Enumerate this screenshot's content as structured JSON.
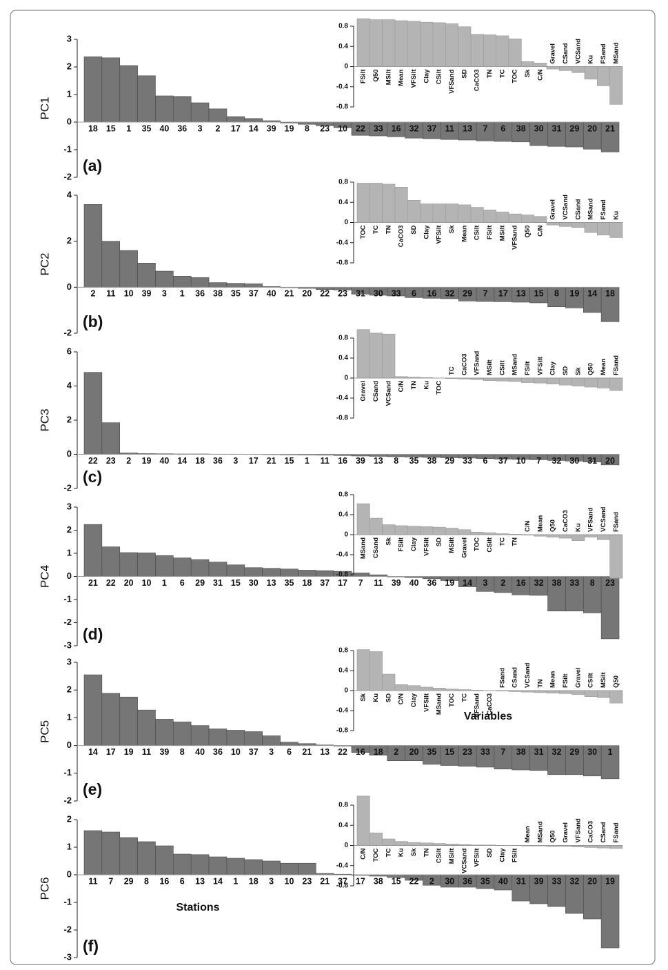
{
  "chart_data": [
    {
      "type": "bar",
      "ylabel": "PC1",
      "panel_label": "(a)",
      "color": "#767676",
      "ylim": [
        -2,
        3
      ],
      "yticks": [
        -2,
        -1,
        0,
        1,
        2,
        3
      ],
      "categories": [
        "18",
        "15",
        "1",
        "35",
        "40",
        "36",
        "3",
        "2",
        "17",
        "14",
        "39",
        "19",
        "8",
        "23",
        "10",
        "22",
        "33",
        "16",
        "32",
        "37",
        "11",
        "13",
        "7",
        "6",
        "38",
        "30",
        "31",
        "29",
        "20",
        "21"
      ],
      "values": [
        2.37,
        2.33,
        2.05,
        1.68,
        0.95,
        0.93,
        0.7,
        0.48,
        0.2,
        0.13,
        0.05,
        -0.03,
        -0.08,
        -0.13,
        -0.2,
        -0.48,
        -0.5,
        -0.53,
        -0.58,
        -0.6,
        -0.63,
        -0.65,
        -0.68,
        -0.7,
        -0.72,
        -0.85,
        -0.88,
        -0.9,
        -0.98,
        -1.08
      ]
    },
    {
      "type": "bar",
      "color": "#b4b4b4",
      "ylim": [
        -0.8,
        0.8
      ],
      "yticks": [
        -0.8,
        -0.4,
        0,
        0.4,
        0.8
      ],
      "categories": [
        "FSilt",
        "Q50",
        "MSilt",
        "Mean",
        "VFSilt",
        "Clay",
        "CSilt",
        "VFSand",
        "SD",
        "CaCO3",
        "TN",
        "TC",
        "TOC",
        "Sk",
        "C/N",
        "Gravel",
        "CSand",
        "VCSand",
        "Ku",
        "FSand",
        "MSand"
      ],
      "values": [
        0.95,
        0.93,
        0.93,
        0.91,
        0.9,
        0.88,
        0.87,
        0.85,
        0.79,
        0.64,
        0.63,
        0.61,
        0.55,
        0.1,
        0.07,
        -0.05,
        -0.08,
        -0.12,
        -0.25,
        -0.38,
        -0.75
      ]
    },
    {
      "type": "bar",
      "ylabel": "PC2",
      "panel_label": "(b)",
      "color": "#767676",
      "ylim": [
        -2,
        4
      ],
      "yticks": [
        -2,
        0,
        2,
        4
      ],
      "categories": [
        "2",
        "11",
        "10",
        "39",
        "3",
        "1",
        "36",
        "38",
        "35",
        "37",
        "40",
        "21",
        "20",
        "22",
        "23",
        "31",
        "30",
        "33",
        "6",
        "16",
        "32",
        "29",
        "7",
        "17",
        "13",
        "15",
        "8",
        "19",
        "14",
        "18"
      ],
      "values": [
        3.6,
        2.0,
        1.6,
        1.05,
        0.7,
        0.48,
        0.42,
        0.2,
        0.17,
        0.15,
        0.03,
        -0.02,
        -0.05,
        -0.1,
        -0.12,
        -0.3,
        -0.35,
        -0.38,
        -0.45,
        -0.48,
        -0.5,
        -0.6,
        -0.62,
        -0.63,
        -0.65,
        -0.68,
        -0.85,
        -0.9,
        -1.1,
        -1.5
      ]
    },
    {
      "type": "bar",
      "color": "#b4b4b4",
      "ylim": [
        -0.8,
        0.8
      ],
      "yticks": [
        -0.8,
        -0.4,
        0,
        0.4,
        0.8
      ],
      "categories": [
        "TOC",
        "TC",
        "TN",
        "CaCO3",
        "SD",
        "Clay",
        "VFSilt",
        "Sk",
        "Mean",
        "CSilt",
        "FSilt",
        "MSilt",
        "VFSand",
        "Q50",
        "C/N",
        "Gravel",
        "VCSand",
        "CSand",
        "MSand",
        "FSand",
        "Ku"
      ],
      "values": [
        0.78,
        0.78,
        0.76,
        0.7,
        0.44,
        0.37,
        0.37,
        0.37,
        0.35,
        0.3,
        0.25,
        0.21,
        0.17,
        0.15,
        0.12,
        -0.05,
        -0.08,
        -0.1,
        -0.2,
        -0.25,
        -0.3
      ]
    },
    {
      "type": "bar",
      "ylabel": "PC3",
      "panel_label": "(c)",
      "color": "#767676",
      "ylim": [
        -2,
        6
      ],
      "yticks": [
        -2,
        0,
        2,
        4,
        6
      ],
      "categories": [
        "22",
        "23",
        "2",
        "19",
        "40",
        "14",
        "18",
        "36",
        "3",
        "17",
        "21",
        "15",
        "1",
        "11",
        "16",
        "39",
        "13",
        "8",
        "35",
        "38",
        "29",
        "33",
        "6",
        "37",
        "10",
        "7",
        "32",
        "30",
        "31",
        "20"
      ],
      "values": [
        4.8,
        1.85,
        0.08,
        0.04,
        0.03,
        0.02,
        0.02,
        0.01,
        0.01,
        0,
        -0.02,
        -0.03,
        -0.04,
        -0.05,
        -0.07,
        -0.1,
        -0.12,
        -0.14,
        -0.16,
        -0.18,
        -0.2,
        -0.22,
        -0.25,
        -0.28,
        -0.3,
        -0.32,
        -0.36,
        -0.4,
        -0.45,
        -0.62
      ]
    },
    {
      "type": "bar",
      "color": "#b4b4b4",
      "ylim": [
        -0.8,
        0.8
      ],
      "yticks": [
        -0.8,
        -0.4,
        0,
        0.4,
        0.8
      ],
      "categories": [
        "Gravel",
        "CSand",
        "VCSand",
        "C/N",
        "TN",
        "Ku",
        "TOC",
        "TC",
        "CaCO3",
        "VFSand",
        "MSilt",
        "CSilt",
        "MSand",
        "FSilt",
        "VFSilt",
        "Clay",
        "SD",
        "Sk",
        "Q50",
        "Mean",
        "FSand"
      ],
      "values": [
        0.97,
        0.9,
        0.88,
        0.03,
        0.02,
        0.01,
        0,
        -0.01,
        -0.02,
        -0.03,
        -0.05,
        -0.06,
        -0.07,
        -0.09,
        -0.1,
        -0.12,
        -0.14,
        -0.16,
        -0.18,
        -0.2,
        -0.25
      ]
    },
    {
      "type": "bar",
      "ylabel": "PC4",
      "panel_label": "(d)",
      "color": "#767676",
      "ylim": [
        -3,
        3
      ],
      "yticks": [
        -3,
        -2,
        -1,
        0,
        1,
        2,
        3
      ],
      "categories": [
        "21",
        "22",
        "20",
        "10",
        "1",
        "6",
        "29",
        "31",
        "15",
        "30",
        "13",
        "35",
        "18",
        "37",
        "17",
        "7",
        "11",
        "39",
        "40",
        "36",
        "19",
        "14",
        "3",
        "2",
        "16",
        "32",
        "38",
        "33",
        "8",
        "23"
      ],
      "values": [
        2.25,
        1.28,
        1.03,
        1.02,
        0.9,
        0.8,
        0.73,
        0.62,
        0.5,
        0.38,
        0.35,
        0.32,
        0.27,
        0.25,
        0.22,
        0.15,
        0.07,
        -0.02,
        -0.05,
        -0.1,
        -0.18,
        -0.45,
        -0.65,
        -0.7,
        -0.8,
        -0.82,
        -1.5,
        -1.5,
        -1.58,
        -2.7
      ]
    },
    {
      "type": "bar",
      "color": "#b4b4b4",
      "ylim": [
        -0.8,
        0.8
      ],
      "yticks": [
        -0.8,
        -0.4,
        0,
        0.4,
        0.8
      ],
      "categories": [
        "MSand",
        "CSand",
        "Sk",
        "FSilt",
        "Clay",
        "VFSilt",
        "SD",
        "MSilt",
        "Gravel",
        "TOC",
        "CSilt",
        "TC",
        "TN",
        "C/N",
        "Mean",
        "Q50",
        "CaCO3",
        "Ku",
        "VFSand",
        "VCSand",
        "FSand"
      ],
      "values": [
        0.62,
        0.33,
        0.2,
        0.18,
        0.17,
        0.16,
        0.15,
        0.13,
        0.1,
        0.05,
        0.04,
        0.02,
        0.01,
        -0.01,
        -0.03,
        -0.05,
        -0.07,
        -0.12,
        -0.05,
        -0.1,
        -0.87
      ]
    },
    {
      "type": "bar",
      "ylabel": "PC5",
      "panel_label": "(e)",
      "color": "#767676",
      "ylim": [
        -2,
        3
      ],
      "yticks": [
        -2,
        -1,
        0,
        1,
        2,
        3
      ],
      "categories": [
        "14",
        "17",
        "19",
        "11",
        "39",
        "8",
        "40",
        "36",
        "10",
        "37",
        "3",
        "6",
        "21",
        "13",
        "22",
        "16",
        "18",
        "2",
        "20",
        "35",
        "15",
        "23",
        "33",
        "7",
        "38",
        "31",
        "32",
        "29",
        "30",
        "1"
      ],
      "values": [
        2.55,
        1.88,
        1.75,
        1.28,
        0.95,
        0.85,
        0.72,
        0.6,
        0.55,
        0.5,
        0.35,
        0.12,
        0.07,
        0.02,
        -0.02,
        -0.25,
        -0.35,
        -0.55,
        -0.55,
        -0.68,
        -0.72,
        -0.75,
        -0.78,
        -0.85,
        -0.88,
        -0.9,
        -1.05,
        -1.05,
        -1.1,
        -1.2
      ]
    },
    {
      "type": "bar",
      "xlabel": "Variables",
      "color": "#b4b4b4",
      "ylim": [
        -0.8,
        0.8
      ],
      "yticks": [
        -0.8,
        -0.4,
        0,
        0.4,
        0.8
      ],
      "categories": [
        "Sk",
        "Ku",
        "SD",
        "C/N",
        "Clay",
        "VFSilt",
        "MSand",
        "TOC",
        "TC",
        "VFSand",
        "CaCO3",
        "FSand",
        "CSand",
        "VCSand",
        "TN",
        "Mean",
        "FSilt",
        "Gravel",
        "CSilt",
        "MSilt",
        "Q50"
      ],
      "values": [
        0.82,
        0.78,
        0.33,
        0.12,
        0.1,
        0.07,
        0.05,
        0.03,
        0.02,
        0.01,
        0,
        -0.01,
        -0.02,
        -0.03,
        -0.04,
        -0.05,
        -0.06,
        -0.08,
        -0.12,
        -0.14,
        -0.25
      ]
    },
    {
      "type": "bar",
      "ylabel": "PC6",
      "panel_label": "(f)",
      "xlabel": "Stations",
      "color": "#767676",
      "ylim": [
        -3,
        2
      ],
      "yticks": [
        -3,
        -2,
        -1,
        0,
        1,
        2
      ],
      "categories": [
        "11",
        "7",
        "29",
        "8",
        "16",
        "6",
        "13",
        "14",
        "1",
        "18",
        "3",
        "10",
        "23",
        "21",
        "37",
        "17",
        "38",
        "15",
        "22",
        "2",
        "30",
        "36",
        "35",
        "40",
        "31",
        "39",
        "33",
        "32",
        "20",
        "19"
      ],
      "values": [
        1.6,
        1.55,
        1.35,
        1.2,
        1.05,
        0.75,
        0.73,
        0.65,
        0.6,
        0.55,
        0.5,
        0.42,
        0.42,
        0.05,
        0.02,
        -0.02,
        -0.05,
        -0.1,
        -0.2,
        -0.38,
        -0.45,
        -0.45,
        -0.5,
        -0.55,
        -0.95,
        -1.05,
        -1.15,
        -1.4,
        -1.6,
        -2.65
      ]
    },
    {
      "type": "bar",
      "color": "#b4b4b4",
      "ylim": [
        -0.8,
        0.8
      ],
      "yticks": [
        -0.8,
        -0.4,
        0,
        0.4,
        0.8
      ],
      "categories": [
        "C/N",
        "TOC",
        "TC",
        "Ku",
        "Sk",
        "TN",
        "CSilt",
        "MSilt",
        "VCSand",
        "VFSilt",
        "SD",
        "Clay",
        "FSilt",
        "Mean",
        "MSand",
        "Q50",
        "Gravel",
        "VFSand",
        "CaCO3",
        "CSand",
        "FSand"
      ],
      "values": [
        0.98,
        0.25,
        0.13,
        0.08,
        0.06,
        0.05,
        0.04,
        0.03,
        0.02,
        0.01,
        0.01,
        0,
        0,
        -0.01,
        -0.01,
        -0.02,
        -0.02,
        -0.03,
        -0.04,
        -0.05,
        -0.06
      ]
    }
  ]
}
